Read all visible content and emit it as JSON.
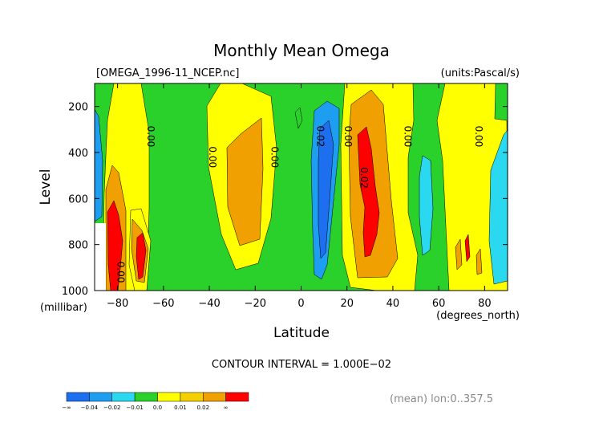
{
  "chart_data": {
    "type": "heatmap",
    "title": "Monthly Mean Omega",
    "file_label": "[OMEGA_1996-11_NCEP.nc]",
    "units_label": "(units:Pascal/s)",
    "xlabel": "Latitude",
    "x_unit": "(degrees_north)",
    "ylabel": "Level",
    "y_unit": "(millibar)",
    "xlim": [
      -90,
      90
    ],
    "ylim": [
      1000,
      100
    ],
    "x_ticks": [
      -80,
      -60,
      -40,
      -20,
      0,
      20,
      40,
      60,
      80
    ],
    "x_tick_labels": [
      "−80",
      "−60",
      "−40",
      "−20",
      "0",
      "20",
      "40",
      "60",
      "80"
    ],
    "y_ticks": [
      200,
      400,
      600,
      800,
      1000
    ],
    "y_tick_labels": [
      "200",
      "400",
      "600",
      "800",
      "1000"
    ],
    "contour_interval": "CONTOUR INTERVAL = 1.000E−02",
    "mean_note": "(mean) lon:0..357.5",
    "contour_labels": [
      {
        "text": "0.00",
        "lat": -67,
        "level": 330
      },
      {
        "text": "0.00",
        "lat": -40,
        "level": 420
      },
      {
        "text": "0.00",
        "lat": -13,
        "level": 420
      },
      {
        "text": "0.02",
        "lat": 7,
        "level": 330
      },
      {
        "text": "0.00",
        "lat": 19,
        "level": 330
      },
      {
        "text": "0.02",
        "lat": 26,
        "level": 510
      },
      {
        "text": "0.00",
        "lat": 45,
        "level": 330
      },
      {
        "text": "0.00",
        "lat": 76,
        "level": 330
      },
      {
        "text": "0.00",
        "lat": -80,
        "level": 920
      }
    ],
    "colorbar": {
      "colors": [
        "#1e6ef0",
        "#1e9ef0",
        "#2ad8f0",
        "#2ad12a",
        "#ffff00",
        "#f5d000",
        "#f0a000",
        "#ff0000"
      ],
      "labels": [
        "−∞",
        "−0.04",
        "−0.02",
        "−0.01",
        "0.0",
        "0.01",
        "0.02",
        "∞"
      ]
    }
  }
}
